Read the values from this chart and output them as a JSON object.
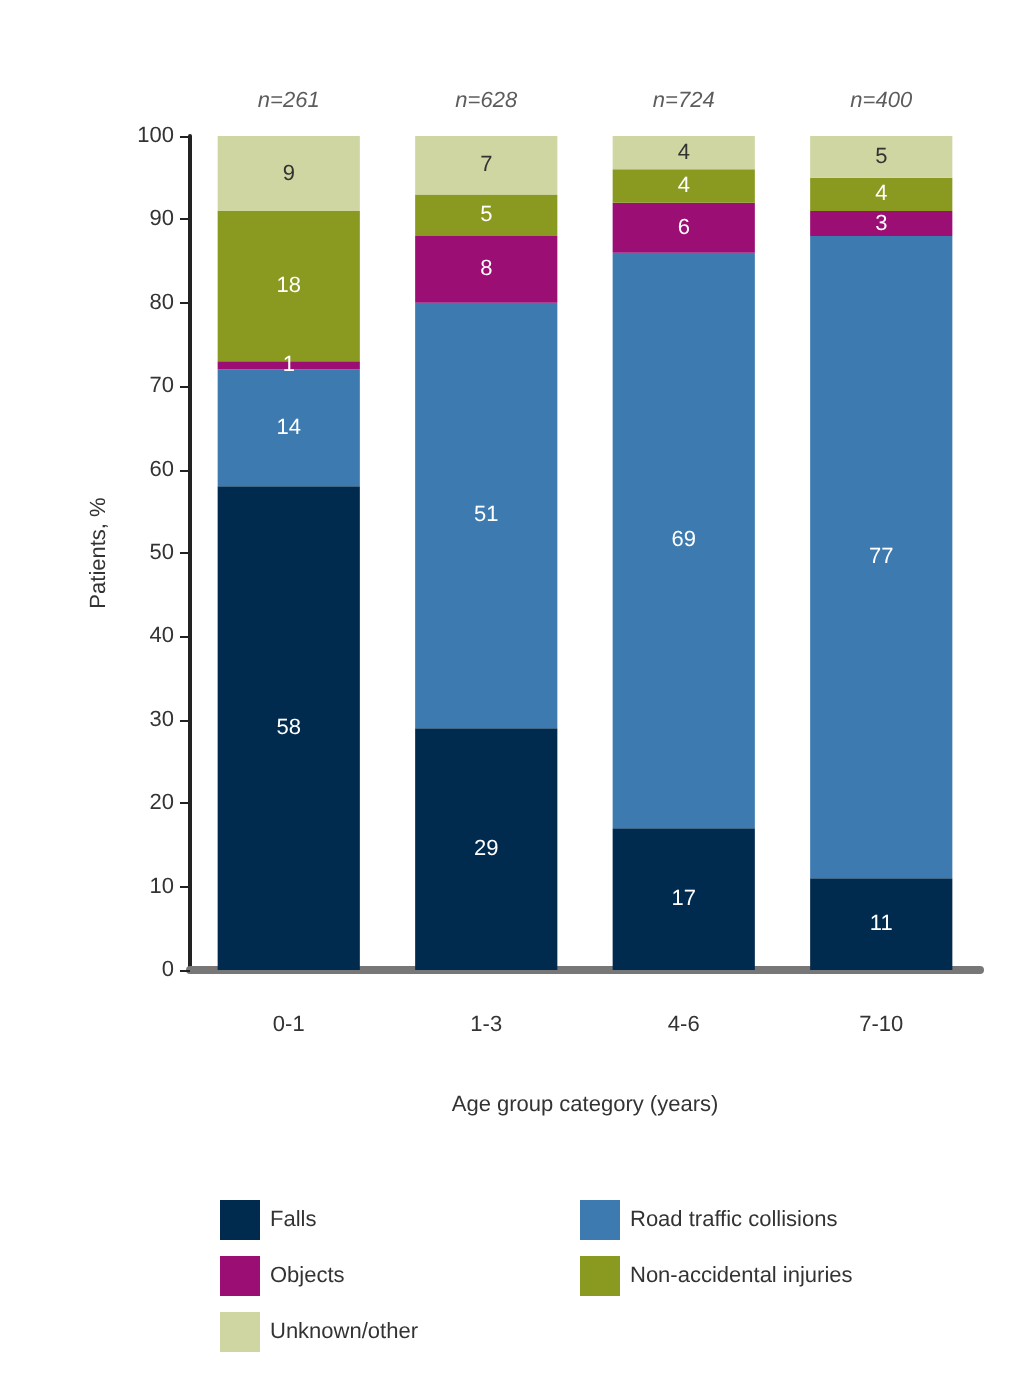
{
  "chart_data": {
    "type": "bar",
    "stacked": true,
    "xlabel": "Age group category (years)",
    "ylabel": "Patients, %",
    "categories": [
      "0-1",
      "1-3",
      "4-6",
      "7-10"
    ],
    "series": [
      {
        "name": "Falls",
        "color": "#002a4e",
        "values": [
          58,
          29,
          17,
          11
        ]
      },
      {
        "name": "Road traffic collisions",
        "color": "#3d7aaf",
        "values": [
          14,
          51,
          69,
          77
        ]
      },
      {
        "name": "Objects",
        "color": "#9b0e74",
        "values": [
          1,
          8,
          6,
          3
        ]
      },
      {
        "name": "Non-accidental injuries",
        "color": "#8a9a20",
        "values": [
          18,
          5,
          4,
          4
        ]
      },
      {
        "name": "Unknown/other",
        "color": "#d0d6a2",
        "values": [
          9,
          7,
          4,
          5
        ]
      }
    ],
    "ylim": [
      0,
      100
    ],
    "yticks": [
      0,
      10,
      20,
      30,
      40,
      50,
      60,
      70,
      80,
      90,
      100
    ],
    "data_labels": true,
    "grid": false,
    "legend": "bottom",
    "annotations": [
      {
        "text": "n=261",
        "x": "0-1",
        "y": 100
      },
      {
        "text": "n=628",
        "x": "1-3",
        "y": 100
      },
      {
        "text": "n=724",
        "x": "4-6",
        "y": 100
      },
      {
        "text": "n=400",
        "x": "7-10",
        "y": 100
      }
    ]
  }
}
